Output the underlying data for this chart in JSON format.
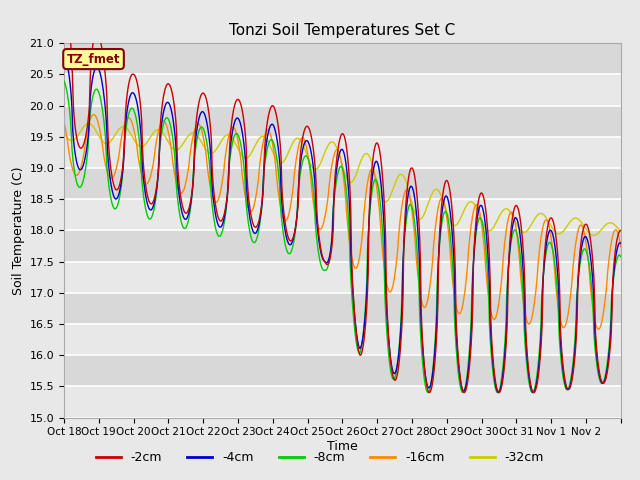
{
  "title": "Tonzi Soil Temperatures Set C",
  "xlabel": "Time",
  "ylabel": "Soil Temperature (C)",
  "ylim": [
    15.0,
    21.0
  ],
  "yticks": [
    15.0,
    15.5,
    16.0,
    16.5,
    17.0,
    17.5,
    18.0,
    18.5,
    19.0,
    19.5,
    20.0,
    20.5,
    21.0
  ],
  "xtick_labels": [
    "Oct 18",
    "Oct 19",
    "Oct 20",
    "Oct 21",
    "Oct 22",
    "Oct 23",
    "Oct 24",
    "Oct 25",
    "Oct 26",
    "Oct 27",
    "Oct 28",
    "Oct 29",
    "Oct 30",
    "Oct 31",
    "Nov 1",
    "Nov 2"
  ],
  "legend_labels": [
    "-2cm",
    "-4cm",
    "-8cm",
    "-16cm",
    "-32cm"
  ],
  "legend_colors": [
    "#cc0000",
    "#0000cc",
    "#00cc00",
    "#ff8800",
    "#cccc00"
  ],
  "line_colors": [
    "#cc0000",
    "#0000cc",
    "#00cc00",
    "#ff8800",
    "#cccc00"
  ],
  "annotation_text": "TZ_fmet",
  "annotation_color": "#880000",
  "annotation_bg": "#ffff99",
  "background_color": "#e8e8e8",
  "plot_bg": "#e8e8e8",
  "grid_color": "#ffffff",
  "n_days": 16
}
